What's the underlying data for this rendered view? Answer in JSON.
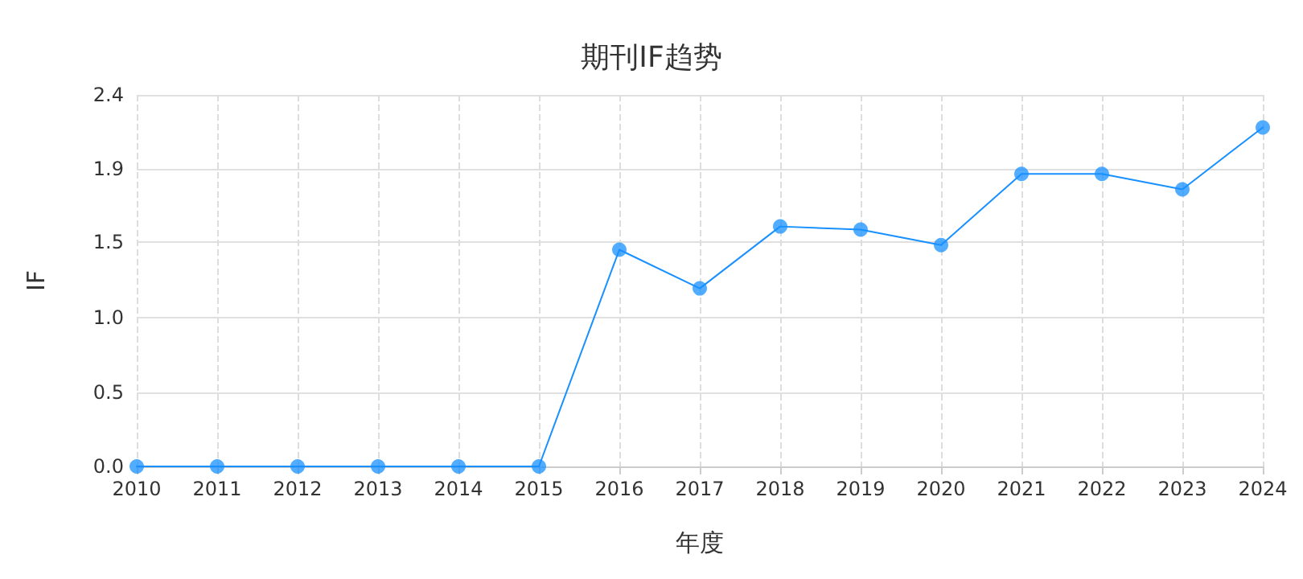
{
  "chart_data": {
    "type": "line",
    "title": "期刊IF趋势",
    "xlabel": "年度",
    "ylabel": "IF",
    "categories": [
      "2010",
      "2011",
      "2012",
      "2013",
      "2014",
      "2015",
      "2016",
      "2017",
      "2018",
      "2019",
      "2020",
      "2021",
      "2022",
      "2023",
      "2024"
    ],
    "series": [
      {
        "color": "#1890ff",
        "values": [
          0,
          0,
          0,
          0,
          0,
          0,
          1.4,
          1.15,
          1.55,
          1.53,
          1.43,
          1.89,
          1.89,
          1.79,
          2.19
        ]
      }
    ],
    "ylim": [
      0,
      2.4
    ],
    "yticks": [
      {
        "value": 0,
        "label": "0.0"
      },
      {
        "value": 0.48,
        "label": "0.5"
      },
      {
        "value": 0.96,
        "label": "1.0"
      },
      {
        "value": 1.45,
        "label": "1.5"
      },
      {
        "value": 1.92,
        "label": "1.9"
      },
      {
        "value": 2.4,
        "label": "2.4"
      }
    ],
    "grid": true,
    "marker": "circle",
    "line_style": "solid"
  }
}
